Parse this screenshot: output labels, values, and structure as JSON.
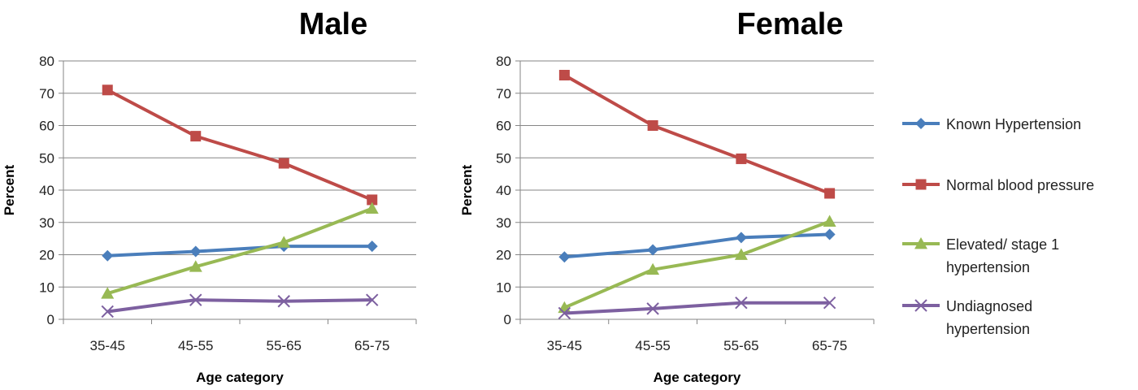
{
  "colors": {
    "Known Hypertension": "#4a7ebb",
    "Normal blood pressure": "#be4b48",
    "Elevated/stage 1 hypertension": "#98b954",
    "Undiagnosed hypertension": "#7d60a0",
    "grid": "#868686"
  },
  "markers": {
    "Known Hypertension": "diamond",
    "Normal blood pressure": "square",
    "Elevated/stage 1 hypertension": "triangle",
    "Undiagnosed hypertension": "x"
  },
  "legend": {
    "items": [
      {
        "series": "Known Hypertension",
        "lines": [
          "Known  Hypertension"
        ]
      },
      {
        "series": "Normal blood pressure",
        "lines": [
          "Normal blood pressure"
        ]
      },
      {
        "series": "Elevated/stage 1 hypertension",
        "lines": [
          "Elevated/ stage 1",
          "hypertension"
        ]
      },
      {
        "series": "Undiagnosed hypertension",
        "lines": [
          "Undiagnosed",
          "hypertension"
        ]
      }
    ]
  },
  "chart_data": [
    {
      "type": "line",
      "title": "Male",
      "xlabel": "Age category",
      "ylabel": "Percent",
      "categories": [
        "35-45",
        "45-55",
        "55-65",
        "65-75"
      ],
      "ylim": [
        0,
        80
      ],
      "yticks": [
        0,
        10,
        20,
        30,
        40,
        50,
        60,
        70,
        80
      ],
      "grid": true,
      "series": [
        {
          "name": "Known Hypertension",
          "values": [
            19.7,
            21,
            22.6,
            22.6
          ]
        },
        {
          "name": "Normal blood pressure",
          "values": [
            71,
            56.7,
            48.3,
            37
          ]
        },
        {
          "name": "Elevated/stage 1 hypertension",
          "values": [
            8,
            16.3,
            23.8,
            34.3
          ]
        },
        {
          "name": "Undiagnosed hypertension",
          "values": [
            2.4,
            6,
            5.6,
            6
          ]
        }
      ]
    },
    {
      "type": "line",
      "title": "Female",
      "xlabel": "Age category",
      "ylabel": "Percent",
      "categories": [
        "35-45",
        "45-55",
        "55-65",
        "65-75"
      ],
      "ylim": [
        0,
        80
      ],
      "yticks": [
        0,
        10,
        20,
        30,
        40,
        50,
        60,
        70,
        80
      ],
      "grid": true,
      "series": [
        {
          "name": "Known Hypertension",
          "values": [
            19.3,
            21.5,
            25.3,
            26.3
          ]
        },
        {
          "name": "Normal blood pressure",
          "values": [
            75.6,
            60,
            49.7,
            39
          ]
        },
        {
          "name": "Elevated/stage 1 hypertension",
          "values": [
            3.6,
            15.4,
            20,
            30.3
          ]
        },
        {
          "name": "Undiagnosed hypertension",
          "values": [
            1.9,
            3.3,
            5.1,
            5.1
          ]
        }
      ]
    }
  ]
}
